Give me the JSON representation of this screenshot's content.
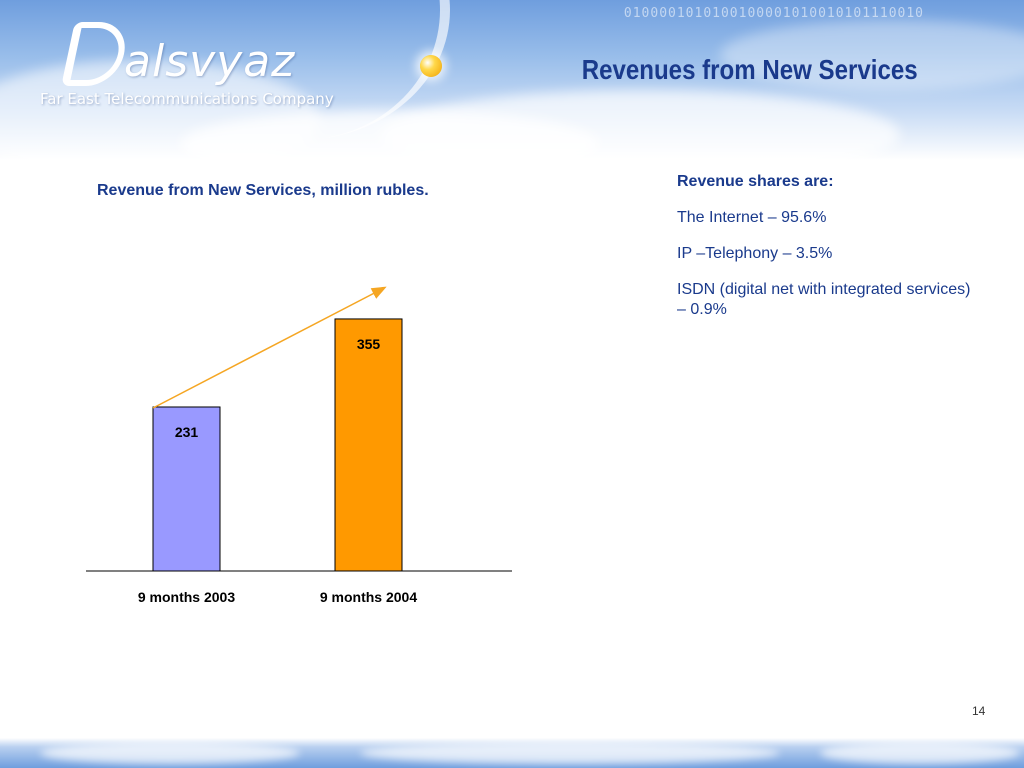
{
  "header": {
    "logo_text": "alsvyaz",
    "tagline": "Far East Telecommunications Company",
    "binary_decor": "0100001010100100001010010101110010"
  },
  "page_title": "Revenues from New Services",
  "chart_title": "Revenue from New Services, million rubles.",
  "chart_data": {
    "type": "bar",
    "categories": [
      "9 months 2003",
      "9 months 2004"
    ],
    "values": [
      231,
      355
    ],
    "data_labels": [
      "231",
      "355"
    ],
    "bar_colors": [
      "#9999ff",
      "#ff9900"
    ],
    "trend_arrow_color": "#f5a623",
    "title": "Revenue from New Services, million rubles.",
    "xlabel": "",
    "ylabel": "",
    "ylim": [
      0,
      400
    ],
    "grid": false,
    "legend": "none"
  },
  "shares": {
    "heading": "Revenue shares are:",
    "items": [
      "The  Internet – 95.6%",
      "IP –Telephony – 3.5%",
      "ISDN (digital net with integrated services) – 0.9%"
    ]
  },
  "page_number": "14",
  "colors": {
    "title_blue": "#1a3a8c",
    "header_blue": "#6f9ede"
  }
}
